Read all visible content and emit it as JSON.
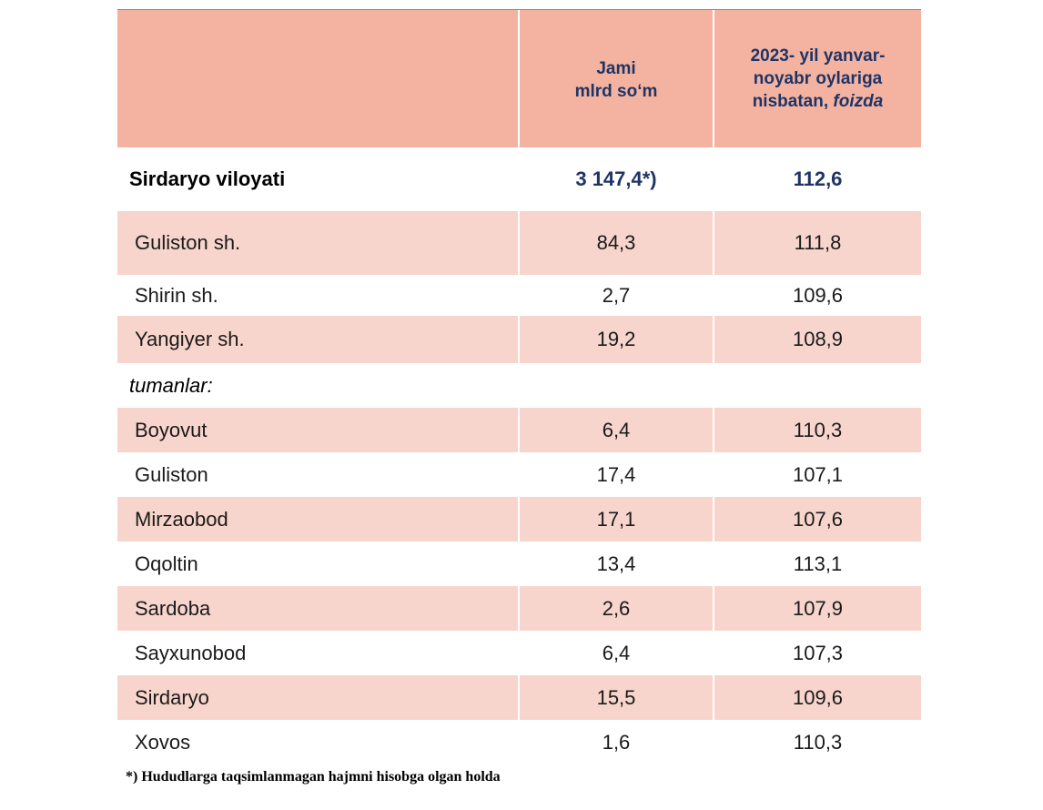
{
  "header": {
    "col2_line1": "Jami",
    "col2_line2": "mlrd so‘m",
    "col3_line1": "2023- yil yanvar-",
    "col3_line2": "noyabr oylariga",
    "col3_line3_a": "nisbatan, ",
    "col3_line3_b": "foizda"
  },
  "total": {
    "name": "Sirdaryo viloyati",
    "value": "3 147,4*)",
    "percent": "112,6"
  },
  "cities": [
    {
      "name": "Guliston  sh.",
      "value": "84,3",
      "percent": "111,8"
    },
    {
      "name": "Shirin sh.",
      "value": "2,7",
      "percent": "109,6"
    },
    {
      "name": "Yangiyer sh.",
      "value": "19,2",
      "percent": "108,9"
    }
  ],
  "section_label": "tumanlar:",
  "districts": [
    {
      "name": "Boyovut",
      "value": "6,4",
      "percent": "110,3"
    },
    {
      "name": "Guliston",
      "value": "17,4",
      "percent": "107,1"
    },
    {
      "name": "Mirzaobod",
      "value": "17,1",
      "percent": "107,6"
    },
    {
      "name": "Oqoltin",
      "value": "13,4",
      "percent": "113,1"
    },
    {
      "name": "Sardoba",
      "value": "2,6",
      "percent": "107,9"
    },
    {
      "name": "Sayxunobod",
      "value": "6,4",
      "percent": "107,3"
    },
    {
      "name": "Sirdaryo",
      "value": "15,5",
      "percent": "109,6"
    },
    {
      "name": "Xovos",
      "value": "1,6",
      "percent": "110,3"
    }
  ],
  "footnote": "*) Hududlarga taqsimlanmagan hajmni hisobga olgan holda",
  "colors": {
    "header_bg": "#f4b3a0",
    "row_pink": "#f8d5cc",
    "header_text": "#1f3466"
  }
}
